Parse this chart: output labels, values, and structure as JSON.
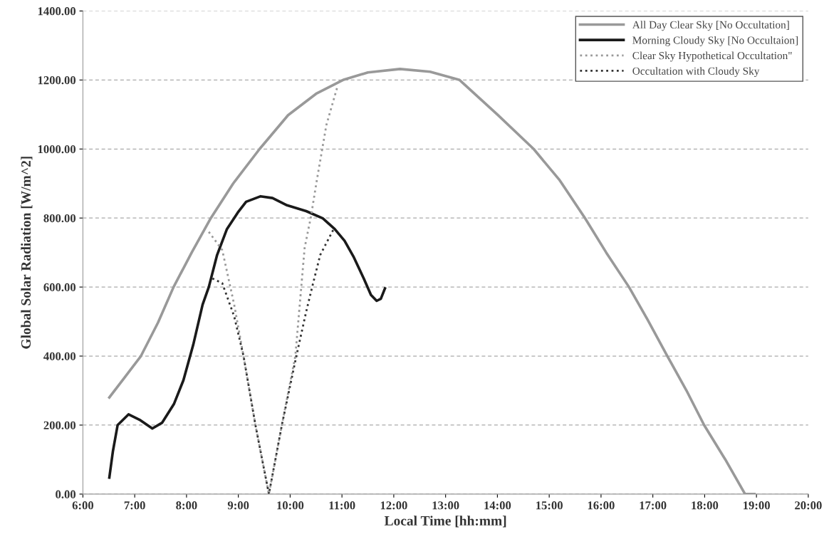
{
  "chart_data": {
    "type": "line",
    "xlabel": "Local Time [hh:mm]",
    "ylabel": "Global Solar Radiation [W/m^2]",
    "xlim": [
      6,
      20
    ],
    "ylim": [
      0,
      1400
    ],
    "xticks": [
      {
        "value": 6,
        "label": "6:00"
      },
      {
        "value": 7,
        "label": "7:00"
      },
      {
        "value": 8,
        "label": "8:00"
      },
      {
        "value": 9,
        "label": "9:00"
      },
      {
        "value": 10,
        "label": "10:00"
      },
      {
        "value": 11,
        "label": "11:00"
      },
      {
        "value": 12,
        "label": "12:00"
      },
      {
        "value": 13,
        "label": "13:00"
      },
      {
        "value": 14,
        "label": "14:00"
      },
      {
        "value": 15,
        "label": "15:00"
      },
      {
        "value": 16,
        "label": "16:00"
      },
      {
        "value": 17,
        "label": "17:00"
      },
      {
        "value": 18,
        "label": "18:00"
      },
      {
        "value": 19,
        "label": "19:00"
      },
      {
        "value": 20,
        "label": "20:00"
      }
    ],
    "yticks": [
      {
        "value": 0,
        "label": "0.00"
      },
      {
        "value": 200,
        "label": "200.00"
      },
      {
        "value": 400,
        "label": "400.00"
      },
      {
        "value": 600,
        "label": "600.00"
      },
      {
        "value": 800,
        "label": "800.00"
      },
      {
        "value": 1000,
        "label": "1000.00"
      },
      {
        "value": 1200,
        "label": "1200.00"
      },
      {
        "value": 1400,
        "label": "1400.00"
      }
    ],
    "grid": "y",
    "legend": "top right",
    "marker": "none",
    "series": [
      {
        "name": "All Day Clear Sky [No Occultation]",
        "color": "#999999",
        "line_style": "solid",
        "x": [
          6.51,
          6.8,
          7.12,
          7.45,
          7.75,
          8.1,
          8.47,
          8.9,
          9.41,
          9.96,
          10.5,
          11.02,
          11.5,
          12.12,
          12.7,
          13.27,
          14.0,
          14.7,
          15.2,
          15.69,
          16.1,
          16.54,
          16.9,
          17.28,
          17.65,
          17.99,
          18.4,
          18.78,
          18.96
        ],
        "values": [
          280,
          337,
          400,
          497,
          600,
          700,
          800,
          900,
          1000,
          1098,
          1160,
          1200,
          1222,
          1232,
          1224,
          1200,
          1100,
          1000,
          910,
          800,
          700,
          600,
          505,
          400,
          300,
          200,
          100,
          0,
          0
        ]
      },
      {
        "name": "Morning Cloudy Sky [No Occultaion]",
        "color": "#1a1a1a",
        "line_style": "solid",
        "x": [
          6.51,
          6.58,
          6.67,
          6.88,
          7.11,
          7.34,
          7.53,
          7.76,
          7.94,
          8.13,
          8.31,
          8.43,
          8.59,
          8.78,
          8.99,
          9.15,
          9.43,
          9.66,
          9.94,
          10.31,
          10.63,
          10.86,
          11.05,
          11.23,
          11.42,
          11.56,
          11.67,
          11.75,
          11.83
        ],
        "values": [
          48,
          125,
          200,
          231,
          214,
          190,
          207,
          262,
          330,
          433,
          549,
          600,
          693,
          768,
          816,
          847,
          863,
          858,
          837,
          820,
          799,
          768,
          734,
          686,
          625,
          577,
          560,
          566,
          596
        ]
      },
      {
        "name": "Clear Sky Hypothetical Occultation\"",
        "color": "#999999",
        "line_style": "dotted",
        "x": [
          8.43,
          8.69,
          8.92,
          9.1,
          9.33,
          9.59,
          9.84,
          10.1,
          10.28,
          10.4,
          10.51,
          10.7,
          10.92
        ],
        "values": [
          760,
          707,
          549,
          400,
          200,
          0,
          200,
          400,
          714,
          803,
          905,
          1070,
          1185
        ]
      },
      {
        "name": "Occultation with Cloudy Sky",
        "color": "#333333",
        "line_style": "dotted",
        "x": [
          8.5,
          8.69,
          8.92,
          9.1,
          9.33,
          9.59,
          9.84,
          10.12,
          10.31,
          10.42,
          10.58,
          10.84
        ],
        "values": [
          625,
          611,
          515,
          400,
          200,
          0,
          200,
          400,
          529,
          597,
          693,
          768
        ]
      }
    ]
  }
}
